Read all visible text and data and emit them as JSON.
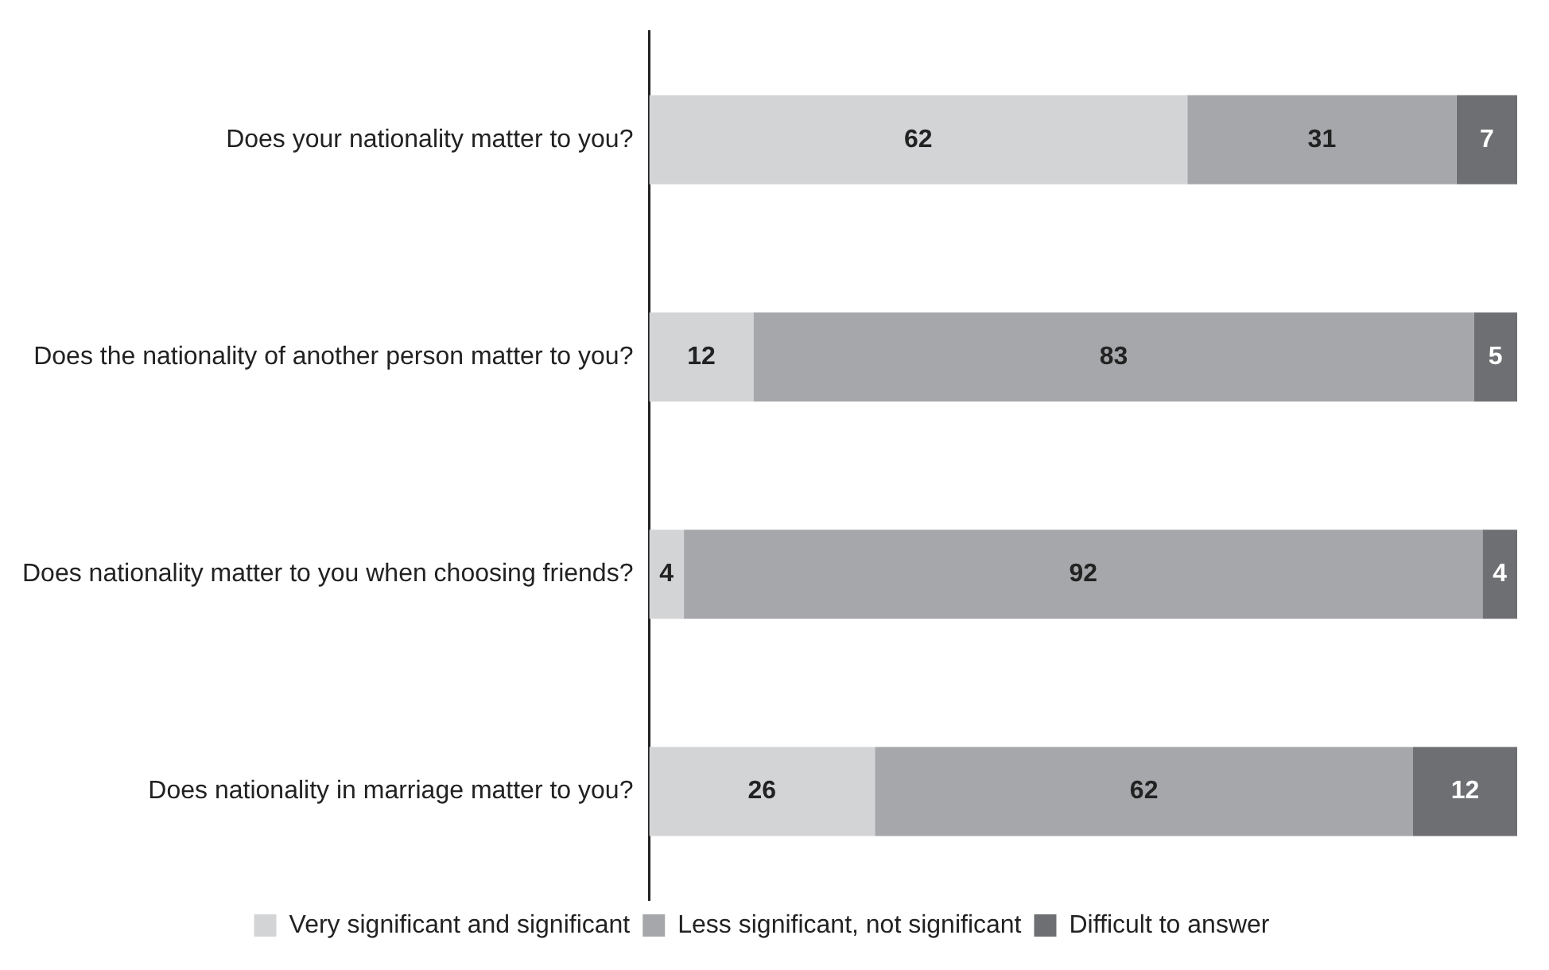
{
  "chart_data": {
    "type": "bar",
    "orientation": "horizontal",
    "stacked": true,
    "data_labels": true,
    "legend": "bottom",
    "tick_labels": "y",
    "categories": [
      "Does your nationality matter to you?",
      "Does the nationality of another person matter to you?",
      "Does nationality matter to you when choosing friends?",
      "Does nationality in marriage matter to you?"
    ],
    "series": [
      {
        "name": "Very significant and significant",
        "color": "#d3d4d6",
        "values": [
          62,
          12,
          4,
          26
        ]
      },
      {
        "name": "Less significant, not significant",
        "color": "#a6a7aa",
        "values": [
          31,
          83,
          92,
          62
        ]
      },
      {
        "name": "Difficult to answer",
        "color": "#6e6f72",
        "values": [
          7,
          5,
          4,
          12
        ]
      }
    ]
  }
}
